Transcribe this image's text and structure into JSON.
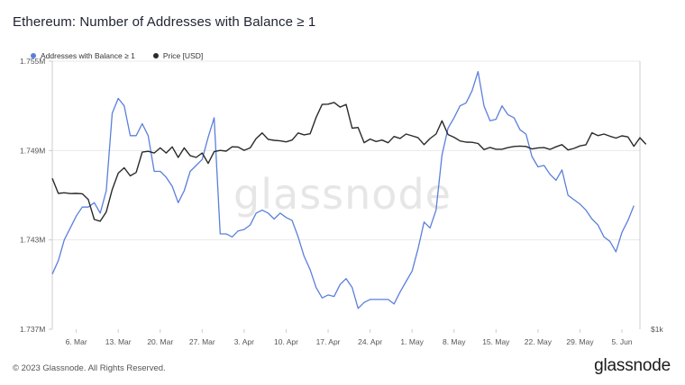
{
  "title": "Ethereum: Number of Addresses with Balance ≥ 1",
  "footer": {
    "copyright": "© 2023 Glassnode. All Rights Reserved.",
    "brand": "glassnode"
  },
  "watermark": "glassnode",
  "colors": {
    "addresses": "#5b7fdc",
    "price": "#2a2a2a",
    "grid": "#e9e9e9",
    "axis": "#cccccc"
  },
  "chart_data": {
    "type": "line",
    "title": "Ethereum: Number of Addresses with Balance ≥ 1",
    "legend_position": "top-left",
    "grid": true,
    "x_ticks": [
      "6. Mar",
      "13. Mar",
      "20. Mar",
      "27. Mar",
      "3. Apr",
      "10. Apr",
      "17. Apr",
      "24. Apr",
      "1. May",
      "8. May",
      "15. May",
      "22. May",
      "29. May",
      "5. Jun"
    ],
    "x_range": [
      "2023-03-02",
      "2023-06-08"
    ],
    "y_left": {
      "ticks": [
        "1.737M",
        "1.743M",
        "1.749M",
        "1.755M"
      ],
      "ylim": [
        1737000,
        1755000
      ]
    },
    "y_right": {
      "ticks": [
        "$1k"
      ],
      "ylim_note": "log scale"
    },
    "series": [
      {
        "name": "Addresses with Balance ≥ 1",
        "axis": "left",
        "points": [
          [
            "2023-03-02",
            1740700
          ],
          [
            "2023-03-03",
            1741600
          ],
          [
            "2023-03-04",
            1743000
          ],
          [
            "2023-03-05",
            1743800
          ],
          [
            "2023-03-06",
            1744600
          ],
          [
            "2023-03-07",
            1745200
          ],
          [
            "2023-03-08",
            1745200
          ],
          [
            "2023-03-09",
            1745500
          ],
          [
            "2023-03-10",
            1744800
          ],
          [
            "2023-03-11",
            1746300
          ],
          [
            "2023-03-12",
            1751500
          ],
          [
            "2023-03-13",
            1752500
          ],
          [
            "2023-03-14",
            1752000
          ],
          [
            "2023-03-15",
            1750000
          ],
          [
            "2023-03-16",
            1750000
          ],
          [
            "2023-03-17",
            1750800
          ],
          [
            "2023-03-18",
            1750000
          ],
          [
            "2023-03-19",
            1747600
          ],
          [
            "2023-03-20",
            1747600
          ],
          [
            "2023-03-21",
            1747200
          ],
          [
            "2023-03-22",
            1746600
          ],
          [
            "2023-03-23",
            1745500
          ],
          [
            "2023-03-24",
            1746300
          ],
          [
            "2023-03-25",
            1747600
          ],
          [
            "2023-03-26",
            1748000
          ],
          [
            "2023-03-27",
            1748400
          ],
          [
            "2023-03-28",
            1749900
          ],
          [
            "2023-03-29",
            1751200
          ],
          [
            "2023-03-30",
            1743400
          ],
          [
            "2023-03-31",
            1743400
          ],
          [
            "2023-04-01",
            1743200
          ],
          [
            "2023-04-02",
            1743600
          ],
          [
            "2023-04-03",
            1743700
          ],
          [
            "2023-04-04",
            1744000
          ],
          [
            "2023-04-05",
            1744800
          ],
          [
            "2023-04-06",
            1745000
          ],
          [
            "2023-04-07",
            1744800
          ],
          [
            "2023-04-08",
            1744400
          ],
          [
            "2023-04-09",
            1744800
          ],
          [
            "2023-04-10",
            1744500
          ],
          [
            "2023-04-11",
            1744300
          ],
          [
            "2023-04-12",
            1743200
          ],
          [
            "2023-04-13",
            1741900
          ],
          [
            "2023-04-14",
            1741000
          ],
          [
            "2023-04-15",
            1739800
          ],
          [
            "2023-04-16",
            1739100
          ],
          [
            "2023-04-17",
            1739300
          ],
          [
            "2023-04-18",
            1739200
          ],
          [
            "2023-04-19",
            1740000
          ],
          [
            "2023-04-20",
            1740400
          ],
          [
            "2023-04-21",
            1739800
          ],
          [
            "2023-04-22",
            1738400
          ],
          [
            "2023-04-23",
            1738800
          ],
          [
            "2023-04-24",
            1739000
          ],
          [
            "2023-04-25",
            1739000
          ],
          [
            "2023-04-26",
            1739000
          ],
          [
            "2023-04-27",
            1739000
          ],
          [
            "2023-04-28",
            1738700
          ],
          [
            "2023-04-29",
            1739500
          ],
          [
            "2023-04-30",
            1740200
          ],
          [
            "2023-05-01",
            1740900
          ],
          [
            "2023-05-02",
            1742400
          ],
          [
            "2023-05-03",
            1744200
          ],
          [
            "2023-05-04",
            1743800
          ],
          [
            "2023-05-05",
            1745000
          ],
          [
            "2023-05-06",
            1748700
          ],
          [
            "2023-05-07",
            1750500
          ],
          [
            "2023-05-08",
            1751200
          ],
          [
            "2023-05-09",
            1752000
          ],
          [
            "2023-05-10",
            1752200
          ],
          [
            "2023-05-11",
            1753000
          ],
          [
            "2023-05-12",
            1754300
          ],
          [
            "2023-05-13",
            1752000
          ],
          [
            "2023-05-14",
            1751000
          ],
          [
            "2023-05-15",
            1751100
          ],
          [
            "2023-05-16",
            1752000
          ],
          [
            "2023-05-17",
            1751400
          ],
          [
            "2023-05-18",
            1751200
          ],
          [
            "2023-05-19",
            1750400
          ],
          [
            "2023-05-20",
            1750100
          ],
          [
            "2023-05-21",
            1748600
          ],
          [
            "2023-05-22",
            1747900
          ],
          [
            "2023-05-23",
            1748000
          ],
          [
            "2023-05-24",
            1747400
          ],
          [
            "2023-05-25",
            1747000
          ],
          [
            "2023-05-26",
            1747700
          ],
          [
            "2023-05-27",
            1746000
          ],
          [
            "2023-05-28",
            1745700
          ],
          [
            "2023-05-29",
            1745400
          ],
          [
            "2023-05-30",
            1745000
          ],
          [
            "2023-05-31",
            1744400
          ],
          [
            "2023-06-01",
            1744000
          ],
          [
            "2023-06-02",
            1743200
          ],
          [
            "2023-06-03",
            1742900
          ],
          [
            "2023-06-04",
            1742200
          ],
          [
            "2023-06-05",
            1743500
          ],
          [
            "2023-06-06",
            1744300
          ],
          [
            "2023-06-07",
            1745300
          ]
        ]
      },
      {
        "name": "Price [USD]",
        "axis": "right",
        "points": [
          [
            "2023-03-02",
            1645
          ],
          [
            "2023-03-03",
            1565
          ],
          [
            "2023-03-04",
            1568
          ],
          [
            "2023-03-05",
            1564
          ],
          [
            "2023-03-06",
            1565
          ],
          [
            "2023-03-07",
            1563
          ],
          [
            "2023-03-08",
            1534
          ],
          [
            "2023-03-09",
            1436
          ],
          [
            "2023-03-10",
            1428
          ],
          [
            "2023-03-11",
            1472
          ],
          [
            "2023-03-12",
            1585
          ],
          [
            "2023-03-13",
            1673
          ],
          [
            "2023-03-14",
            1703
          ],
          [
            "2023-03-15",
            1658
          ],
          [
            "2023-03-16",
            1677
          ],
          [
            "2023-03-17",
            1793
          ],
          [
            "2023-03-18",
            1798
          ],
          [
            "2023-03-19",
            1788
          ],
          [
            "2023-03-20",
            1818
          ],
          [
            "2023-03-21",
            1788
          ],
          [
            "2023-03-22",
            1824
          ],
          [
            "2023-03-23",
            1762
          ],
          [
            "2023-03-24",
            1818
          ],
          [
            "2023-03-25",
            1772
          ],
          [
            "2023-03-26",
            1762
          ],
          [
            "2023-03-27",
            1788
          ],
          [
            "2023-03-28",
            1728
          ],
          [
            "2023-03-29",
            1796
          ],
          [
            "2023-03-30",
            1803
          ],
          [
            "2023-03-31",
            1799
          ],
          [
            "2023-04-01",
            1825
          ],
          [
            "2023-04-02",
            1823
          ],
          [
            "2023-04-03",
            1804
          ],
          [
            "2023-04-04",
            1818
          ],
          [
            "2023-04-05",
            1875
          ],
          [
            "2023-04-06",
            1910
          ],
          [
            "2023-04-07",
            1870
          ],
          [
            "2023-04-08",
            1864
          ],
          [
            "2023-04-09",
            1861
          ],
          [
            "2023-04-10",
            1855
          ],
          [
            "2023-04-11",
            1866
          ],
          [
            "2023-04-12",
            1910
          ],
          [
            "2023-04-13",
            1898
          ],
          [
            "2023-04-14",
            1905
          ],
          [
            "2023-04-15",
            2010
          ],
          [
            "2023-04-16",
            2098
          ],
          [
            "2023-04-17",
            2100
          ],
          [
            "2023-04-18",
            2112
          ],
          [
            "2023-04-19",
            2080
          ],
          [
            "2023-04-20",
            2098
          ],
          [
            "2023-04-21",
            1940
          ],
          [
            "2023-04-22",
            1945
          ],
          [
            "2023-04-23",
            1850
          ],
          [
            "2023-04-24",
            1872
          ],
          [
            "2023-04-25",
            1857
          ],
          [
            "2023-04-26",
            1866
          ],
          [
            "2023-04-27",
            1849
          ],
          [
            "2023-04-28",
            1888
          ],
          [
            "2023-04-29",
            1876
          ],
          [
            "2023-04-30",
            1903
          ],
          [
            "2023-05-01",
            1892
          ],
          [
            "2023-05-02",
            1880
          ],
          [
            "2023-05-03",
            1838
          ],
          [
            "2023-05-04",
            1875
          ],
          [
            "2023-05-05",
            1903
          ],
          [
            "2023-05-06",
            1988
          ],
          [
            "2023-05-07",
            1900
          ],
          [
            "2023-05-08",
            1883
          ],
          [
            "2023-05-09",
            1860
          ],
          [
            "2023-05-10",
            1853
          ],
          [
            "2023-05-11",
            1852
          ],
          [
            "2023-05-12",
            1845
          ],
          [
            "2023-05-13",
            1808
          ],
          [
            "2023-05-14",
            1821
          ],
          [
            "2023-05-15",
            1810
          ],
          [
            "2023-05-16",
            1810
          ],
          [
            "2023-05-17",
            1820
          ],
          [
            "2023-05-18",
            1827
          ],
          [
            "2023-05-19",
            1829
          ],
          [
            "2023-05-20",
            1827
          ],
          [
            "2023-05-21",
            1812
          ],
          [
            "2023-05-22",
            1818
          ],
          [
            "2023-05-23",
            1820
          ],
          [
            "2023-05-24",
            1809
          ],
          [
            "2023-05-25",
            1825
          ],
          [
            "2023-05-26",
            1838
          ],
          [
            "2023-05-27",
            1806
          ],
          [
            "2023-05-28",
            1815
          ],
          [
            "2023-05-29",
            1830
          ],
          [
            "2023-05-30",
            1837
          ],
          [
            "2023-05-31",
            1911
          ],
          [
            "2023-06-01",
            1893
          ],
          [
            "2023-06-02",
            1903
          ],
          [
            "2023-06-03",
            1890
          ],
          [
            "2023-06-04",
            1878
          ],
          [
            "2023-06-05",
            1892
          ],
          [
            "2023-06-06",
            1885
          ],
          [
            "2023-06-07",
            1828
          ],
          [
            "2023-06-08",
            1880
          ],
          [
            "2023-06-09",
            1840
          ]
        ]
      }
    ]
  }
}
